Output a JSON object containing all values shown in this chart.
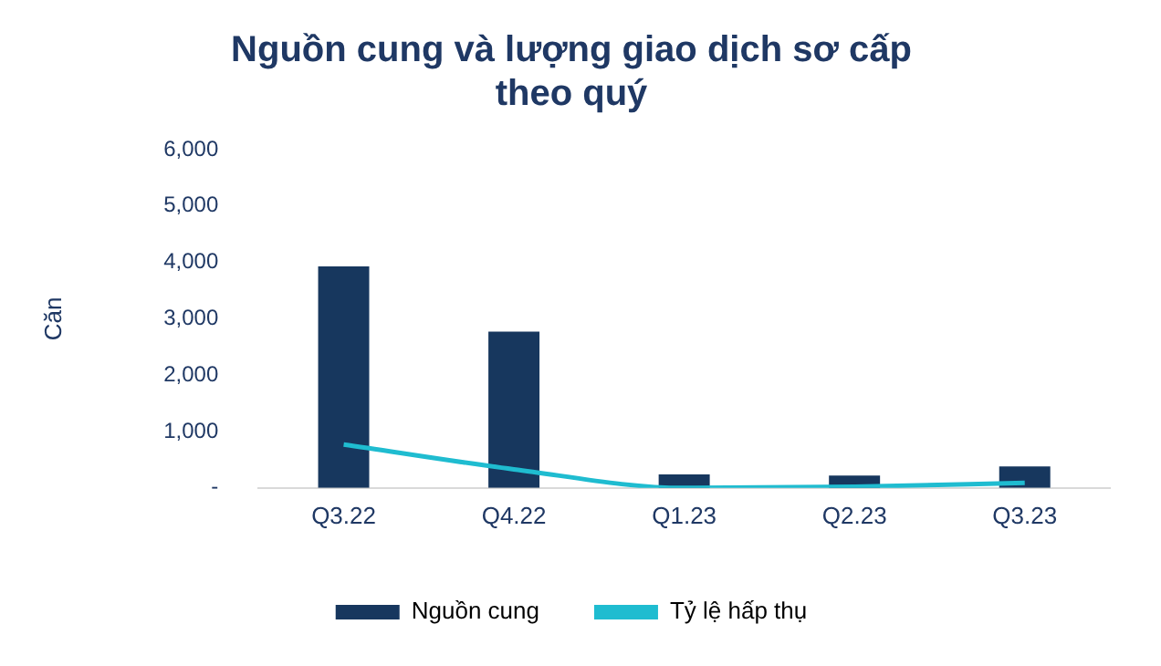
{
  "chart_data": {
    "type": "bar",
    "title": [
      "Nguồn cung và lượng giao dịch sơ cấp",
      "theo quý"
    ],
    "ylabel": "Căn",
    "categories": [
      "Q3.22",
      "Q4.22",
      "Q1.23",
      "Q2.23",
      "Q3.23"
    ],
    "series": [
      {
        "name": "Nguồn cung",
        "color": "#17375e",
        "values": [
          3930,
          2770,
          240,
          220,
          380
        ]
      },
      {
        "name": "Tỷ lệ hấp thụ",
        "type": "line",
        "color": "#1fbcd0",
        "values": [
          770,
          330,
          0,
          20,
          90
        ]
      }
    ],
    "ylim": [
      0,
      6000
    ],
    "yticks": [
      {
        "value": 0,
        "label": "-"
      },
      {
        "value": 1000,
        "label": "1,000"
      },
      {
        "value": 2000,
        "label": "2,000"
      },
      {
        "value": 3000,
        "label": "3,000"
      },
      {
        "value": 4000,
        "label": "4,000"
      },
      {
        "value": 5000,
        "label": "5,000"
      },
      {
        "value": 6000,
        "label": "6,000"
      }
    ],
    "grid": false,
    "legend": "bottom",
    "marker": "none"
  }
}
